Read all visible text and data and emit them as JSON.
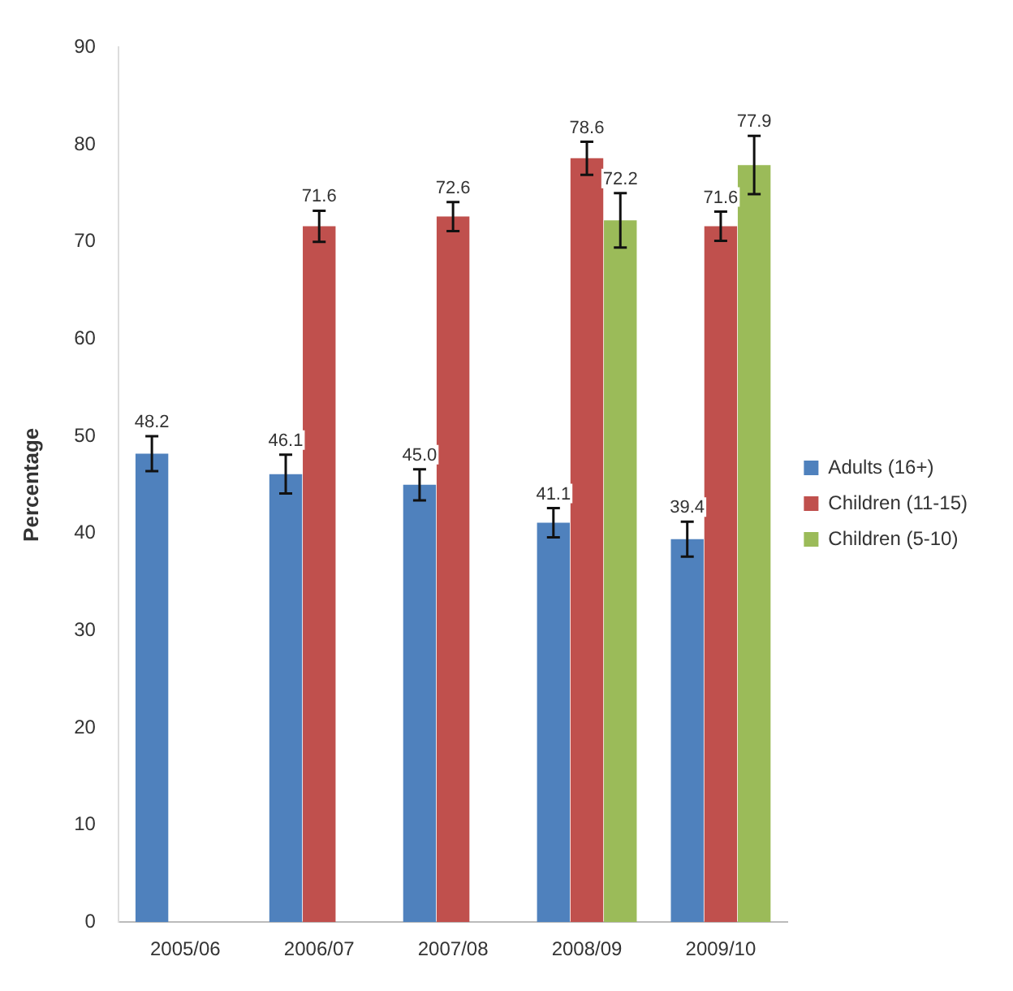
{
  "chart_data": {
    "type": "bar",
    "ylabel": "Percentage",
    "categories": [
      "2005/06",
      "2006/07",
      "2007/08",
      "2008/09",
      "2009/10"
    ],
    "series": [
      {
        "name": "Adults (16+)",
        "color": "#4f81bd",
        "values": [
          48.2,
          46.1,
          45.0,
          41.1,
          39.4
        ],
        "errors": [
          1.8,
          2,
          1.6,
          1.5,
          1.8
        ],
        "value_labels": [
          "48.2",
          "46.1",
          "45.0",
          "41.1",
          "39.4"
        ]
      },
      {
        "name": "Children (11-15)",
        "color": "#c0504d",
        "values": [
          null,
          71.6,
          72.6,
          78.6,
          71.6
        ],
        "errors": [
          null,
          1.6,
          1.5,
          1.7,
          1.5
        ],
        "value_labels": [
          null,
          "71.6",
          "72.6",
          "78.6",
          "71.6"
        ]
      },
      {
        "name": "Children (5-10)",
        "color": "#9bbb59",
        "values": [
          null,
          null,
          null,
          72.2,
          77.9
        ],
        "errors": [
          null,
          null,
          null,
          2.8,
          3
        ],
        "value_labels": [
          null,
          null,
          null,
          "72.2",
          "77.9"
        ]
      }
    ],
    "ylim": [
      0,
      90
    ],
    "yticks": [
      0,
      10,
      20,
      30,
      40,
      50,
      60,
      70,
      80,
      90
    ],
    "grid": false,
    "legend": "right"
  }
}
